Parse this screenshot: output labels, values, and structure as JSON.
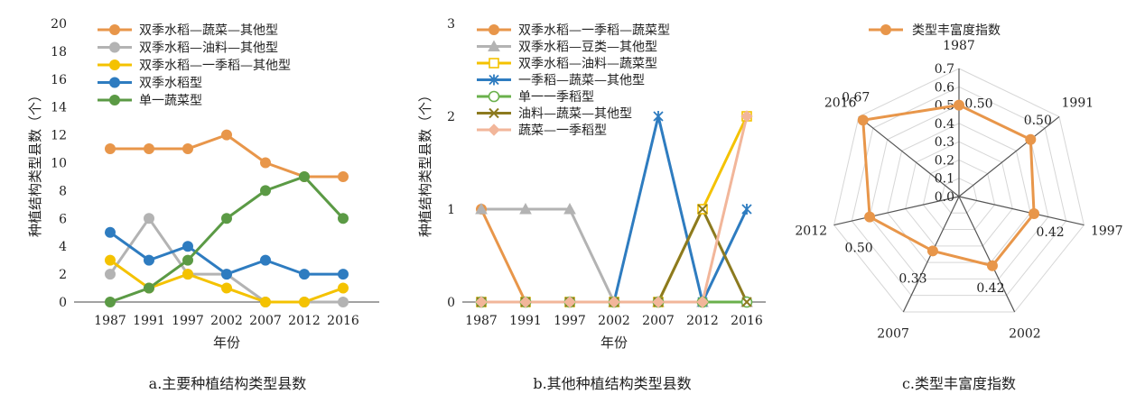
{
  "charts": [
    {
      "type": "line",
      "caption": "a.主要种植结构类型县数",
      "xlabel": "年份",
      "ylabel": "种植结构类型县数（个）",
      "categories": [
        "1987",
        "1991",
        "1997",
        "2002",
        "2007",
        "2012",
        "2016"
      ],
      "ylim": [
        0,
        20
      ],
      "yticks": [
        0,
        2,
        4,
        6,
        8,
        10,
        12,
        14,
        16,
        18,
        20
      ],
      "grid": false,
      "series": [
        {
          "name": "双季水稻—蔬菜—其他型",
          "color": "#e8964a",
          "marker": "circle",
          "values": [
            11,
            11,
            11,
            12,
            10,
            9,
            9
          ]
        },
        {
          "name": "双季水稻—油料—其他型",
          "color": "#b3b3b3",
          "marker": "circle",
          "values": [
            2,
            6,
            2,
            2,
            0,
            0,
            0
          ]
        },
        {
          "name": "双季水稻—一季稻—其他型",
          "color": "#f4c200",
          "marker": "circle",
          "values": [
            3,
            1,
            2,
            1,
            0,
            0,
            1
          ]
        },
        {
          "name": "双季水稻型",
          "color": "#2e7cc0",
          "marker": "circle",
          "values": [
            5,
            3,
            4,
            2,
            3,
            2,
            2
          ]
        },
        {
          "name": "单一蔬菜型",
          "color": "#5b9a45",
          "marker": "circle",
          "values": [
            0,
            1,
            3,
            6,
            8,
            9,
            6
          ]
        }
      ]
    },
    {
      "type": "line",
      "caption": "b.其他种植结构类型县数",
      "xlabel": "年份",
      "ylabel": "种植结构类型县数（个）",
      "categories": [
        "1987",
        "1991",
        "1997",
        "2002",
        "2007",
        "2012",
        "2016"
      ],
      "ylim": [
        0,
        3
      ],
      "yticks": [
        0,
        1,
        2,
        3
      ],
      "grid": false,
      "series": [
        {
          "name": "双季水稻—一季稻—蔬菜型",
          "color": "#e8964a",
          "marker": "circle",
          "values": [
            1,
            0,
            0,
            0,
            0,
            0,
            0
          ]
        },
        {
          "name": "双季水稻—豆类—其他型",
          "color": "#b3b3b3",
          "marker": "triangle",
          "values": [
            1,
            1,
            1,
            0,
            0,
            0,
            0
          ]
        },
        {
          "name": "双季水稻—油料—蔬菜型",
          "color": "#f4c200",
          "marker": "square-open",
          "values": [
            0,
            0,
            0,
            0,
            0,
            1,
            2
          ]
        },
        {
          "name": "一季稻—蔬菜—其他型",
          "color": "#2e7cc0",
          "marker": "asterisk",
          "values": [
            0,
            0,
            0,
            0,
            2,
            0,
            1
          ]
        },
        {
          "name": "单一一季稻型",
          "color": "#6ab04c",
          "marker": "circle-open",
          "values": [
            0,
            0,
            0,
            0,
            0,
            0,
            0
          ]
        },
        {
          "name": "油料—蔬菜—其他型",
          "color": "#8c7a1f",
          "marker": "x",
          "values": [
            0,
            0,
            0,
            0,
            0,
            1,
            0
          ]
        },
        {
          "name": "蔬菜—一季稻型",
          "color": "#f2b69a",
          "marker": "diamond",
          "values": [
            0,
            0,
            0,
            0,
            0,
            0,
            2
          ]
        }
      ]
    },
    {
      "type": "radar",
      "caption": "c.类型丰富度指数",
      "categories": [
        "1987",
        "1991",
        "1997",
        "2002",
        "2007",
        "2012",
        "2016"
      ],
      "rlim": [
        0,
        0.7
      ],
      "rticks": [
        "0.0",
        "0.1",
        "0.2",
        "0.3",
        "0.4",
        "0.5",
        "0.6",
        "0.7"
      ],
      "series": [
        {
          "name": "类型丰富度指数",
          "color": "#e8964a",
          "marker": "circle",
          "values": [
            0.5,
            0.5,
            0.42,
            0.42,
            0.33,
            0.5,
            0.67
          ],
          "labels": [
            "0.50",
            "0.50",
            "0.42",
            "0.42",
            "0.33",
            "0.50",
            "0.67"
          ]
        }
      ]
    }
  ]
}
